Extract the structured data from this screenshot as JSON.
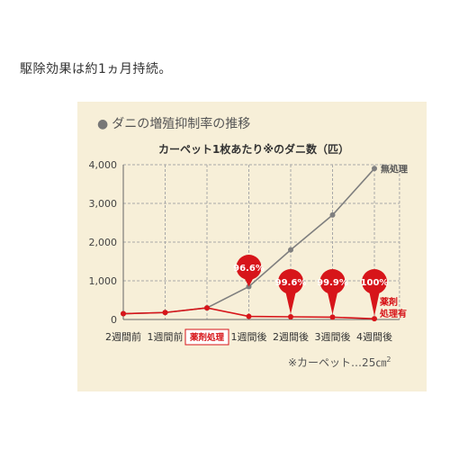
{
  "intro_text": "駆除効果は約1ヵ月持続。",
  "section_title": "ダニの増殖抑制率の推移",
  "footnote": {
    "text": "※カーペット…25㎝",
    "sup": "2"
  },
  "colors": {
    "untreated": "#7f7f7f",
    "treated": "#d7151a",
    "panel": "#f7efd8",
    "grid": "#a8a8a8"
  },
  "chart_data": {
    "type": "line",
    "title": "カーペット1枚あたり※のダニ数（匹）",
    "categories": [
      "2週間前",
      "1週間前",
      "薬剤処理",
      "1週間後",
      "2週間後",
      "3週間後",
      "4週間後"
    ],
    "highlight_category": "薬剤処理",
    "ylim": [
      0,
      4000
    ],
    "yticks": [
      "0",
      "1,000",
      "2,000",
      "3,000",
      "4,000"
    ],
    "grid": true,
    "series": [
      {
        "name": "無処理",
        "values": [
          150,
          180,
          300,
          850,
          1800,
          2700,
          3900
        ]
      },
      {
        "name": "薬剤処理有",
        "name_lines": [
          "薬剤",
          "処理有"
        ],
        "values": [
          150,
          180,
          300,
          80,
          70,
          60,
          20
        ]
      }
    ],
    "annotations": [
      "96.6%",
      "99.6%",
      "99.9%",
      "100%"
    ]
  }
}
